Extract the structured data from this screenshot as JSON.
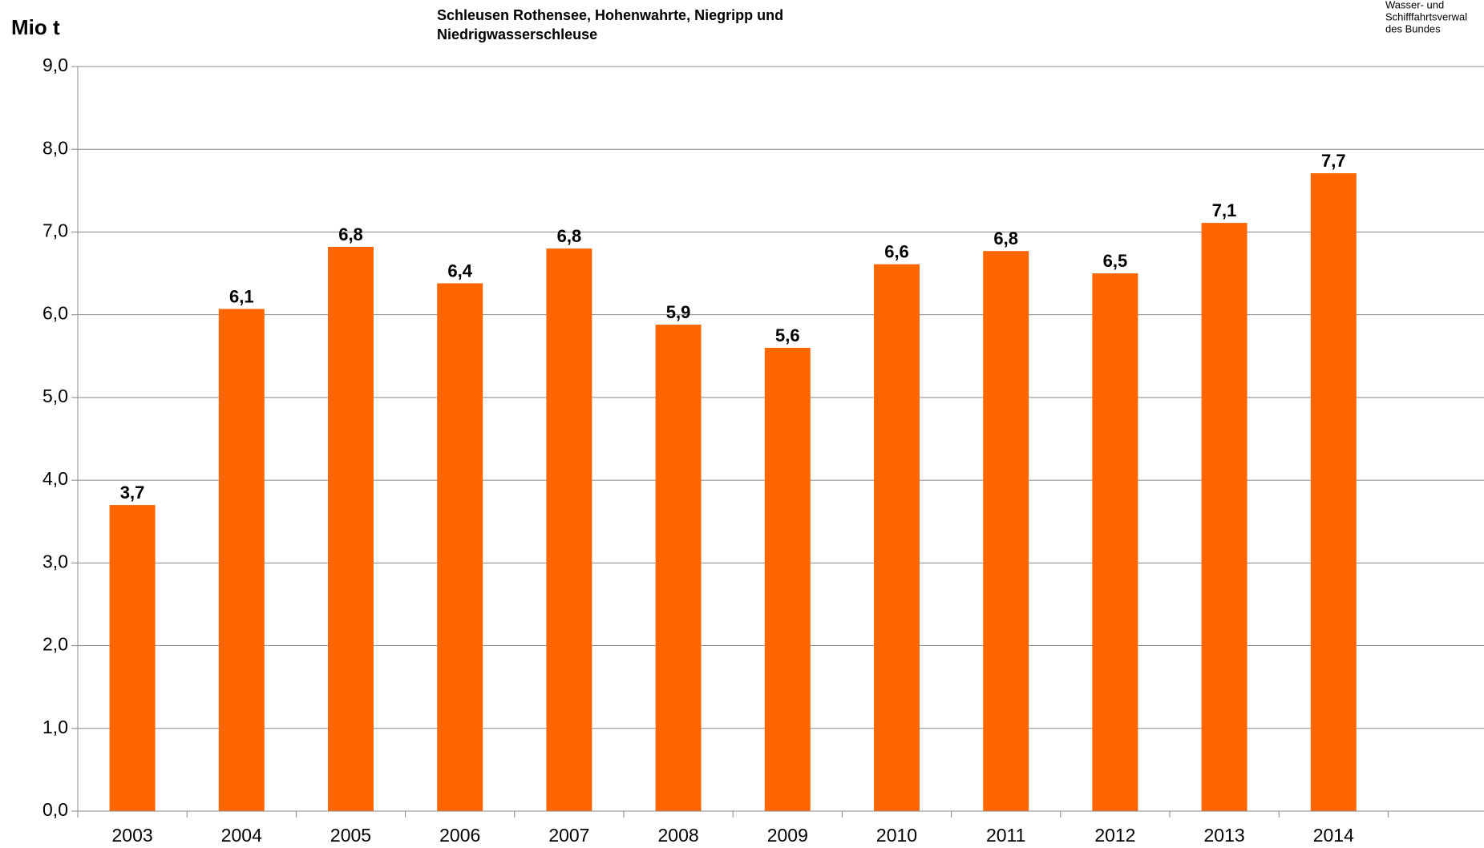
{
  "chart_data": {
    "type": "bar",
    "title": [
      "Schleusen Rothensee, Hohenwahrte, Niegripp und",
      "Niedrigwasserschleuse"
    ],
    "y_label": "Mio t",
    "logo": [
      "Wasser- und",
      "Schifffahrtsverwal",
      "des Bundes"
    ],
    "categories": [
      "2003",
      "2004",
      "2005",
      "2006",
      "2007",
      "2008",
      "2009",
      "2010",
      "2011",
      "2012",
      "2013",
      "2014"
    ],
    "values": [
      3.7,
      6.07,
      6.82,
      6.38,
      6.8,
      5.88,
      5.6,
      6.61,
      6.77,
      6.5,
      7.11,
      7.71
    ],
    "value_labels": [
      "3,7",
      "6,1",
      "6,8",
      "6,4",
      "6,8",
      "5,9",
      "5,6",
      "6,6",
      "6,8",
      "6,5",
      "7,1",
      "7,7"
    ],
    "color": "#ff6600",
    "ylim": [
      0,
      9
    ],
    "yticks": [
      {
        "value": 0,
        "label": "0,0"
      },
      {
        "value": 1,
        "label": "1,0"
      },
      {
        "value": 2,
        "label": "2,0"
      },
      {
        "value": 3,
        "label": "3,0"
      },
      {
        "value": 4,
        "label": "4,0"
      },
      {
        "value": 5,
        "label": "5,0"
      },
      {
        "value": 6,
        "label": "6,0"
      },
      {
        "value": 7,
        "label": "7,0"
      },
      {
        "value": 8,
        "label": "8,0"
      },
      {
        "value": 9,
        "label": "9,0"
      }
    ],
    "grid": true
  }
}
